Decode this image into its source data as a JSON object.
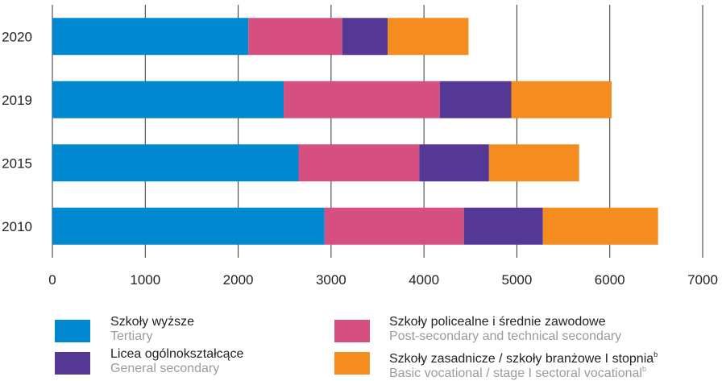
{
  "chart_data": {
    "type": "bar",
    "orientation": "horizontal",
    "stacked": true,
    "categories": [
      "2020",
      "2019",
      "2015",
      "2010"
    ],
    "series": [
      {
        "name": "Szkoły wyższe",
        "name_en": "Tertiary",
        "color": "#0088d1",
        "values": [
          2110,
          2490,
          2650,
          2930
        ]
      },
      {
        "name": "Szkoły policealne i średnie zawodowe",
        "name_en": "Post-secondary and technical secondary",
        "color": "#d54f80",
        "values": [
          1010,
          1680,
          1300,
          1500
        ]
      },
      {
        "name": "Licea ogólnokształcące",
        "name_en": "General secondary",
        "color": "#553896",
        "values": [
          490,
          770,
          750,
          850
        ]
      },
      {
        "name": "Szkoły zasadnicze / szkoły branżowe I stopnia",
        "name_en": "Basic vocational / stage I sectoral vocational",
        "footnote": "b",
        "color": "#f48c1f",
        "values": [
          870,
          1080,
          970,
          1240
        ]
      }
    ],
    "xlim": [
      0,
      7000
    ],
    "xticks": [
      0,
      1000,
      2000,
      3000,
      4000,
      5000,
      6000,
      7000
    ],
    "grid": true,
    "legend_position": "bottom"
  }
}
